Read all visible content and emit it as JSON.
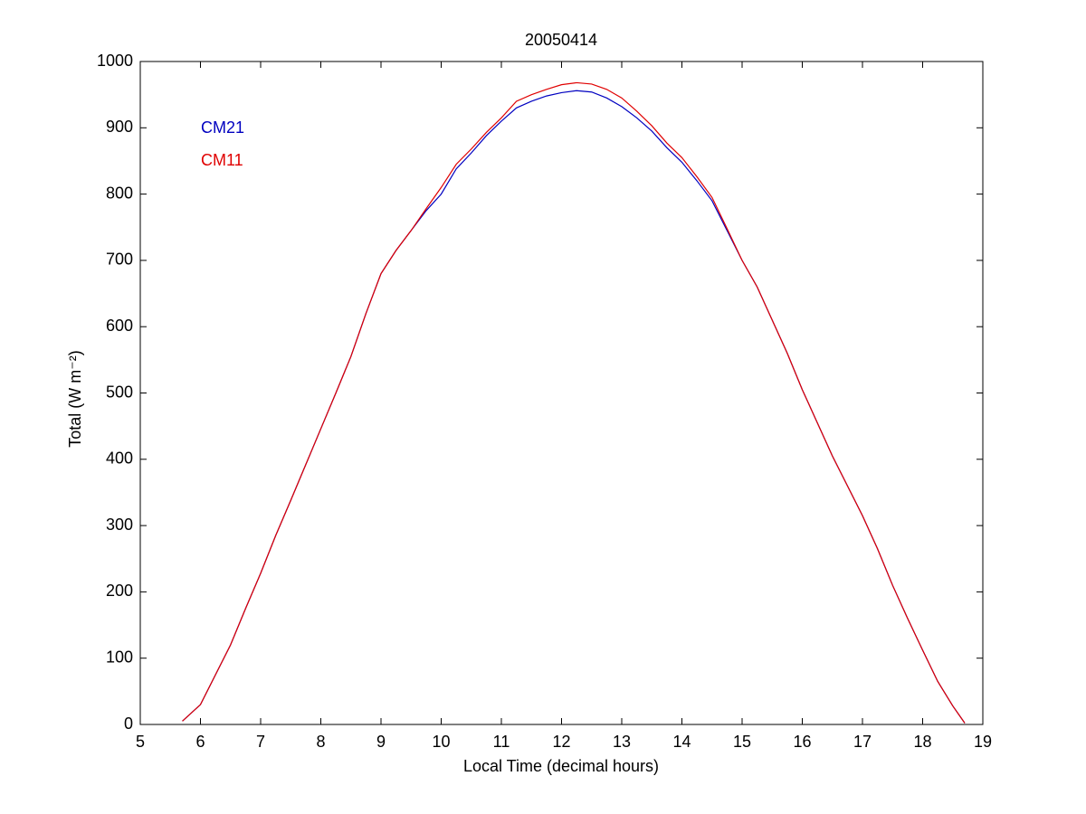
{
  "chart_data": {
    "type": "line",
    "title": "20050414",
    "xlabel": "Local Time (decimal hours)",
    "ylabel": "Total (W m⁻²)",
    "x": [
      5.7,
      6,
      6.25,
      6.5,
      6.75,
      7,
      7.25,
      7.5,
      7.75,
      8,
      8.25,
      8.5,
      8.75,
      9,
      9.25,
      9.5,
      9.75,
      10,
      10.25,
      10.5,
      10.75,
      11,
      11.25,
      11.5,
      11.75,
      12,
      12.25,
      12.5,
      12.75,
      13,
      13.25,
      13.5,
      13.75,
      14,
      14.25,
      14.5,
      14.75,
      15,
      15.25,
      15.5,
      15.75,
      16,
      16.25,
      16.5,
      16.75,
      17,
      17.25,
      17.5,
      17.75,
      18,
      18.25,
      18.5,
      18.7
    ],
    "series": [
      {
        "name": "CM21",
        "color": "#0000c0",
        "values": [
          5,
          30,
          75,
          120,
          175,
          228,
          285,
          338,
          392,
          446,
          500,
          555,
          620,
          680,
          715,
          745,
          775,
          800,
          838,
          862,
          888,
          910,
          930,
          940,
          948,
          953,
          956,
          954,
          945,
          932,
          915,
          895,
          870,
          848,
          820,
          790,
          745,
          700,
          660,
          610,
          560,
          505,
          455,
          405,
          360,
          315,
          265,
          210,
          160,
          112,
          65,
          28,
          2
        ]
      },
      {
        "name": "CM11",
        "color": "#e00000",
        "values": [
          5,
          30,
          75,
          120,
          175,
          228,
          285,
          338,
          392,
          446,
          500,
          555,
          620,
          680,
          715,
          745,
          778,
          810,
          845,
          868,
          893,
          915,
          940,
          950,
          958,
          965,
          968,
          966,
          958,
          945,
          925,
          903,
          877,
          855,
          826,
          795,
          748,
          700,
          660,
          610,
          560,
          505,
          455,
          405,
          360,
          315,
          265,
          210,
          160,
          112,
          65,
          28,
          2
        ]
      }
    ],
    "xlim": [
      5,
      19
    ],
    "xticks": [
      5,
      6,
      7,
      8,
      9,
      10,
      11,
      12,
      13,
      14,
      15,
      16,
      17,
      18,
      19
    ],
    "ylim": [
      0,
      1000
    ],
    "yticks": [
      0,
      100,
      200,
      300,
      400,
      500,
      600,
      700,
      800,
      900,
      1000
    ],
    "grid": false,
    "legend": "upper left"
  }
}
